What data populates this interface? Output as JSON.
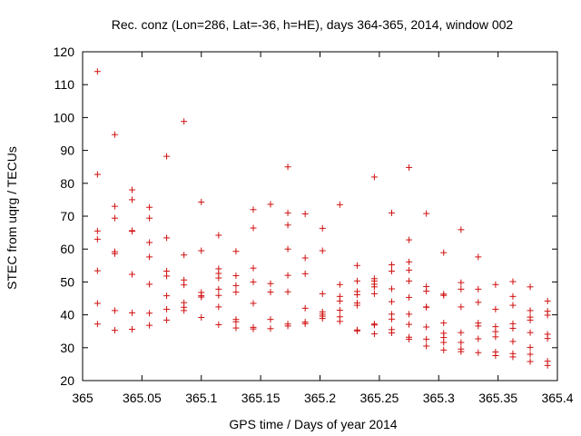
{
  "chart_data": {
    "type": "scatter",
    "title": "Rec. conz (Lon=286, Lat=-36, h=HE), days 364-365, 2014, window 002",
    "xlabel": "GPS time / Days of year 2014",
    "ylabel": "STEC from uqrg / TECUs",
    "xlim": [
      365,
      365.4
    ],
    "ylim": [
      20,
      120
    ],
    "x_ticks": [
      "365",
      "365.05",
      "365.1",
      "365.15",
      "365.2",
      "365.25",
      "365.3",
      "365.35",
      "365.4"
    ],
    "y_ticks": [
      "20",
      "30",
      "40",
      "50",
      "60",
      "70",
      "80",
      "90",
      "100",
      "110",
      "120"
    ],
    "marker": "+",
    "marker_color": "#d01010",
    "grid": false,
    "series": [
      {
        "points": [
          [
            365.0125,
            114
          ],
          [
            365.0125,
            82.7
          ],
          [
            365.0125,
            65.5
          ],
          [
            365.0125,
            63
          ],
          [
            365.0125,
            53.4
          ],
          [
            365.0125,
            43.5
          ],
          [
            365.0125,
            37.2
          ],
          [
            365.0271,
            94.8
          ],
          [
            365.0271,
            73
          ],
          [
            365.0271,
            69.4
          ],
          [
            365.0271,
            59.2
          ],
          [
            365.0271,
            58.6
          ],
          [
            365.0271,
            41.3
          ],
          [
            365.0271,
            35.3
          ],
          [
            365.0417,
            78
          ],
          [
            365.0417,
            75
          ],
          [
            365.0417,
            65.6
          ],
          [
            365.0417,
            65.4
          ],
          [
            365.0417,
            52.3
          ],
          [
            365.0417,
            40.6
          ],
          [
            365.0417,
            35.6
          ],
          [
            365.0563,
            72.7
          ],
          [
            365.0563,
            69.4
          ],
          [
            365.0563,
            62
          ],
          [
            365.0563,
            57.6
          ],
          [
            365.0563,
            49.3
          ],
          [
            365.0563,
            40.5
          ],
          [
            365.0563,
            36.8
          ],
          [
            365.0708,
            88.2
          ],
          [
            365.0708,
            63.4
          ],
          [
            365.0708,
            53.3
          ],
          [
            365.0708,
            51.8
          ],
          [
            365.0708,
            45.8
          ],
          [
            365.0708,
            41.7
          ],
          [
            365.0708,
            38.4
          ],
          [
            365.0854,
            98.8
          ],
          [
            365.0854,
            58.2
          ],
          [
            365.0854,
            50.6
          ],
          [
            365.0854,
            49.1
          ],
          [
            365.0854,
            43.7
          ],
          [
            365.0854,
            42.3
          ],
          [
            365.0854,
            41.3
          ],
          [
            365.1,
            74.3
          ],
          [
            365.1,
            59.5
          ],
          [
            365.1,
            46.8
          ],
          [
            365.1,
            45.8
          ],
          [
            365.1,
            45.4
          ],
          [
            365.1,
            39.2
          ],
          [
            365.1146,
            64.2
          ],
          [
            365.1146,
            54
          ],
          [
            365.1146,
            52.6
          ],
          [
            365.1146,
            51.2
          ],
          [
            365.1146,
            47.8
          ],
          [
            365.1146,
            45.9
          ],
          [
            365.1146,
            42.4
          ],
          [
            365.1146,
            37
          ],
          [
            365.1292,
            59.3
          ],
          [
            365.1292,
            51.9
          ],
          [
            365.1292,
            48.9
          ],
          [
            365.1292,
            46.9
          ],
          [
            365.1292,
            38.6
          ],
          [
            365.1292,
            37.9
          ],
          [
            365.1292,
            36
          ],
          [
            365.1438,
            72
          ],
          [
            365.1438,
            66.4
          ],
          [
            365.1438,
            54.2
          ],
          [
            365.1438,
            50
          ],
          [
            365.1438,
            43.5
          ],
          [
            365.1438,
            36.2
          ],
          [
            365.1438,
            35.7
          ],
          [
            365.1583,
            73.6
          ],
          [
            365.1583,
            49.5
          ],
          [
            365.1583,
            46.9
          ],
          [
            365.1583,
            38.6
          ],
          [
            365.1583,
            35.8
          ],
          [
            365.1729,
            85
          ],
          [
            365.1729,
            71
          ],
          [
            365.1729,
            67.3
          ],
          [
            365.1729,
            60
          ],
          [
            365.1729,
            52
          ],
          [
            365.1729,
            47
          ],
          [
            365.1729,
            37.2
          ],
          [
            365.1729,
            36.6
          ],
          [
            365.1875,
            70.7
          ],
          [
            365.1875,
            57.3
          ],
          [
            365.1875,
            52.5
          ],
          [
            365.1875,
            42
          ],
          [
            365.1875,
            37.8
          ],
          [
            365.1875,
            37.3
          ],
          [
            365.2021,
            66.3
          ],
          [
            365.2021,
            59.5
          ],
          [
            365.2021,
            46.4
          ],
          [
            365.2021,
            40.9
          ],
          [
            365.2021,
            40.2
          ],
          [
            365.2021,
            39.6
          ],
          [
            365.2021,
            38.9
          ],
          [
            365.2167,
            73.5
          ],
          [
            365.2167,
            49.2
          ],
          [
            365.2167,
            45.6
          ],
          [
            365.2167,
            44.2
          ],
          [
            365.2167,
            41.4
          ],
          [
            365.2167,
            39.4
          ],
          [
            365.2167,
            38
          ],
          [
            365.2313,
            55
          ],
          [
            365.2313,
            50.3
          ],
          [
            365.2313,
            47.1
          ],
          [
            365.2313,
            46.1
          ],
          [
            365.2313,
            43.6
          ],
          [
            365.2313,
            42.9
          ],
          [
            365.2313,
            35.4
          ],
          [
            365.2313,
            35.1
          ],
          [
            365.2458,
            81.9
          ],
          [
            365.2458,
            51
          ],
          [
            365.2458,
            50.3
          ],
          [
            365.2458,
            49.3
          ],
          [
            365.2458,
            48.5
          ],
          [
            365.2458,
            46.4
          ],
          [
            365.2458,
            37.2
          ],
          [
            365.2458,
            36.9
          ],
          [
            365.2458,
            34.2
          ],
          [
            365.2604,
            71
          ],
          [
            365.2604,
            55.2
          ],
          [
            365.2604,
            53.3
          ],
          [
            365.2604,
            47.9
          ],
          [
            365.2604,
            44
          ],
          [
            365.2604,
            40.2
          ],
          [
            365.2604,
            38.7
          ],
          [
            365.2604,
            35.5
          ],
          [
            365.2604,
            34.5
          ],
          [
            365.275,
            84.8
          ],
          [
            365.275,
            62.8
          ],
          [
            365.275,
            56.1
          ],
          [
            365.275,
            53.6
          ],
          [
            365.275,
            50.3
          ],
          [
            365.275,
            45.3
          ],
          [
            365.275,
            40.2
          ],
          [
            365.275,
            37.1
          ],
          [
            365.275,
            33.2
          ],
          [
            365.275,
            32.6
          ],
          [
            365.2896,
            70.8
          ],
          [
            365.2896,
            48.6
          ],
          [
            365.2896,
            47.2
          ],
          [
            365.2896,
            42.4
          ],
          [
            365.2896,
            42.3
          ],
          [
            365.2896,
            36.3
          ],
          [
            365.2896,
            32.6
          ],
          [
            365.2896,
            30.5
          ],
          [
            365.3042,
            58.9
          ],
          [
            365.3042,
            46.3
          ],
          [
            365.3042,
            45.9
          ],
          [
            365.3042,
            37.5
          ],
          [
            365.3042,
            34.4
          ],
          [
            365.3042,
            33.1
          ],
          [
            365.3042,
            31.6
          ],
          [
            365.3042,
            29.3
          ],
          [
            365.3188,
            65.9
          ],
          [
            365.3188,
            49.8
          ],
          [
            365.3188,
            47.8
          ],
          [
            365.3188,
            42.4
          ],
          [
            365.3188,
            34.6
          ],
          [
            365.3188,
            31.6
          ],
          [
            365.3188,
            29.6
          ],
          [
            365.3188,
            28.8
          ],
          [
            365.3333,
            57.6
          ],
          [
            365.3333,
            47.8
          ],
          [
            365.3333,
            43.8
          ],
          [
            365.3333,
            37.5
          ],
          [
            365.3333,
            36.6
          ],
          [
            365.3333,
            32.7
          ],
          [
            365.3333,
            28.5
          ],
          [
            365.3479,
            49.2
          ],
          [
            365.3479,
            41.7
          ],
          [
            365.3479,
            36.4
          ],
          [
            365.3479,
            34.9
          ],
          [
            365.3479,
            33.3
          ],
          [
            365.3479,
            28.7
          ],
          [
            365.3479,
            27.6
          ],
          [
            365.3625,
            50.1
          ],
          [
            365.3625,
            45.6
          ],
          [
            365.3625,
            42.9
          ],
          [
            365.3625,
            37.3
          ],
          [
            365.3625,
            35.9
          ],
          [
            365.3625,
            31.9
          ],
          [
            365.3625,
            28.2
          ],
          [
            365.3625,
            27.2
          ],
          [
            365.3771,
            48.5
          ],
          [
            365.3771,
            41.3
          ],
          [
            365.3771,
            39.3
          ],
          [
            365.3771,
            38.4
          ],
          [
            365.3771,
            34.6
          ],
          [
            365.3771,
            30.1
          ],
          [
            365.3771,
            28
          ],
          [
            365.3771,
            25.8
          ],
          [
            365.3917,
            44.2
          ],
          [
            365.3917,
            41.1
          ],
          [
            365.3917,
            39.9
          ],
          [
            365.3917,
            34.1
          ],
          [
            365.3917,
            32.8
          ],
          [
            365.3917,
            25.9
          ],
          [
            365.3917,
            24.6
          ]
        ]
      }
    ]
  }
}
